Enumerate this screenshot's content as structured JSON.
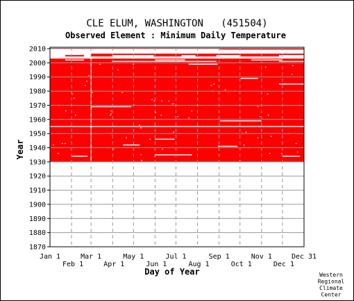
{
  "chart_data": {
    "type": "heatmap",
    "title": "CLE ELUM, WASHINGTON   (451504)",
    "subtitle": "Observed Element : Minimum Daily Temperature",
    "xlabel": "Day of Year",
    "ylabel": "Year",
    "xlim": [
      1,
      366
    ],
    "ylim": [
      1870,
      2011
    ],
    "x_ticks_upper": [
      {
        "label": "Jan 1",
        "day": 1
      },
      {
        "label": "Mar 1",
        "day": 60
      },
      {
        "label": "May 1",
        "day": 121
      },
      {
        "label": "Jul 1",
        "day": 182
      },
      {
        "label": "Sep 1",
        "day": 244
      },
      {
        "label": "Nov 1",
        "day": 305
      },
      {
        "label": "Dec 31",
        "day": 366
      }
    ],
    "x_ticks_lower": [
      {
        "label": "Feb 1",
        "day": 32
      },
      {
        "label": "Apr 1",
        "day": 91
      },
      {
        "label": "Jun 1",
        "day": 152
      },
      {
        "label": "Aug 1",
        "day": 213
      },
      {
        "label": "Oct 1",
        "day": 274
      },
      {
        "label": "Dec 1",
        "day": 335
      }
    ],
    "y_ticks": [
      1870,
      1880,
      1890,
      1900,
      1910,
      1920,
      1930,
      1940,
      1950,
      1960,
      1970,
      1980,
      1990,
      2000,
      2010
    ],
    "grid": true,
    "data_color": "#ff0000",
    "missing_color": "#ffffff",
    "data_period": [
      1931,
      2003
    ],
    "recent_row": {
      "year": 2010,
      "from_day": 245,
      "to_day": 366
    },
    "data_rows": [
      {
        "year": 2005,
        "from_day": 23,
        "to_day": 50
      },
      {
        "year": 2005,
        "from_day": 60,
        "to_day": 90
      },
      {
        "year": 2005,
        "from_day": 150,
        "to_day": 190
      },
      {
        "year": 2005,
        "from_day": 210,
        "to_day": 240
      },
      {
        "year": 2005,
        "from_day": 275,
        "to_day": 330
      },
      {
        "year": 2006,
        "from_day": 60,
        "to_day": 366
      }
    ],
    "gaps": [
      {
        "year": 2002,
        "from_day": 23,
        "to_day": 50
      },
      {
        "year": 2002,
        "from_day": 152,
        "to_day": 195
      },
      {
        "year": 2002,
        "from_day": 290,
        "to_day": 335
      },
      {
        "year": 2001,
        "from_day": 90,
        "to_day": 240
      },
      {
        "year": 2001,
        "from_day": 330,
        "to_day": 366
      },
      {
        "year": 1999,
        "from_day": 200,
        "to_day": 242
      },
      {
        "year": 1989,
        "from_day": 275,
        "to_day": 300
      },
      {
        "year": 1985,
        "from_day": 330,
        "to_day": 366
      },
      {
        "year": 1969,
        "from_day": 60,
        "to_day": 118
      },
      {
        "year": 1959,
        "from_day": 245,
        "to_day": 305
      },
      {
        "year": 1955,
        "from_day": 1,
        "to_day": 60
      },
      {
        "year": 1955,
        "from_day": 60,
        "to_day": 366
      },
      {
        "year": 1946,
        "from_day": 152,
        "to_day": 180
      },
      {
        "year": 1942,
        "from_day": 106,
        "to_day": 130
      },
      {
        "year": 1941,
        "from_day": 242,
        "to_day": 270
      },
      {
        "year": 1935,
        "from_day": 152,
        "to_day": 205
      },
      {
        "year": 1934,
        "from_day": 32,
        "to_day": 55
      },
      {
        "year": 1934,
        "from_day": 335,
        "to_day": 360
      }
    ],
    "vertical_gap_day": 60,
    "credit": [
      "Western",
      "Regional",
      "Climate",
      "Center"
    ]
  }
}
